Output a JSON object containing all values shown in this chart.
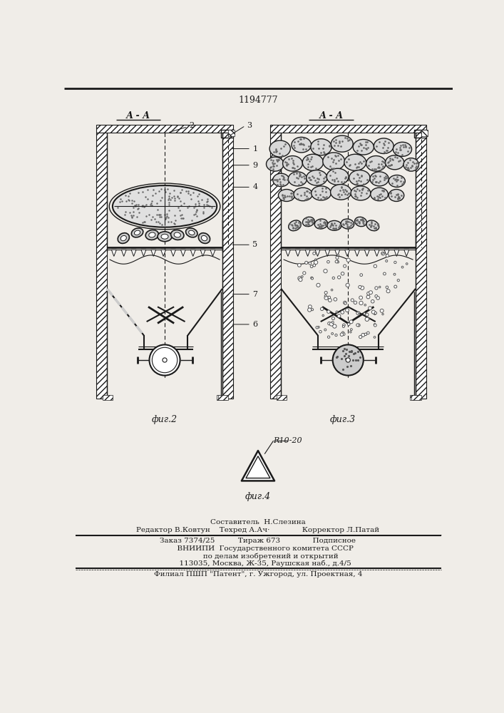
{
  "patent_number": "1194777",
  "bg_color": "#f0ede8",
  "lc": "#1a1a1a",
  "fig2_label": "фиг.2",
  "fig3_label": "фиг.3",
  "fig4_label": "фиг.4",
  "aa_label": "А - А",
  "r_label": "R10-20",
  "white": "#ffffff",
  "gray_light": "#d8d8d8",
  "gray_stipple": "#888888"
}
